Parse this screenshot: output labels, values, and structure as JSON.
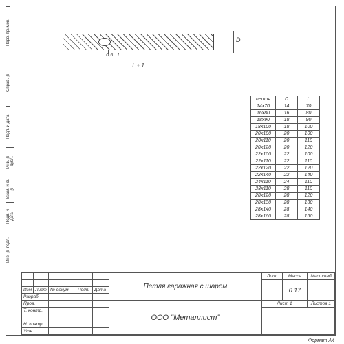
{
  "sidebar": {
    "c1": "Перв. примен.",
    "c2": "Справ. №",
    "c3": "Подп. и дата",
    "c4": "Инв. № дубл.",
    "c5": "Взам. инв. №",
    "c6": "Подп. и дата",
    "c7": "Инв. № подл."
  },
  "dims": {
    "D": "D",
    "tol": "0,5...1",
    "L": "L ± 1"
  },
  "spec": {
    "headers": [
      "петля",
      "D",
      "L"
    ],
    "rows": [
      [
        "14х70",
        "14",
        "70"
      ],
      [
        "16х80",
        "16",
        "80"
      ],
      [
        "18х90",
        "18",
        "90"
      ],
      [
        "18х100",
        "18",
        "100"
      ],
      [
        "20х100",
        "20",
        "100"
      ],
      [
        "20х110",
        "20",
        "110"
      ],
      [
        "20х120",
        "20",
        "120"
      ],
      [
        "22х100",
        "22",
        "100"
      ],
      [
        "22х110",
        "22",
        "110"
      ],
      [
        "22х120",
        "22",
        "120"
      ],
      [
        "22х140",
        "22",
        "140"
      ],
      [
        "24х110",
        "24",
        "110"
      ],
      [
        "28х110",
        "28",
        "110"
      ],
      [
        "28х120",
        "28",
        "120"
      ],
      [
        "28х130",
        "28",
        "130"
      ],
      [
        "28х140",
        "28",
        "140"
      ],
      [
        "28х160",
        "28",
        "160"
      ]
    ]
  },
  "tb": {
    "cols": [
      "Изм",
      "Лист",
      "№ докум.",
      "Подп.",
      "Дата"
    ],
    "roles": [
      "Разраб.",
      "Пров.",
      "Т. контр.",
      "",
      "Н. контр.",
      "Утв."
    ],
    "title": "Петля гаражная  с шаром",
    "lit": "Лит.",
    "mass": "Масса",
    "scale": "Масштаб",
    "massval": "0.17",
    "sheet": "Лист 1",
    "sheets": "Листов 1",
    "company": "ООО \"Металлист\""
  },
  "format": "Формат А4"
}
